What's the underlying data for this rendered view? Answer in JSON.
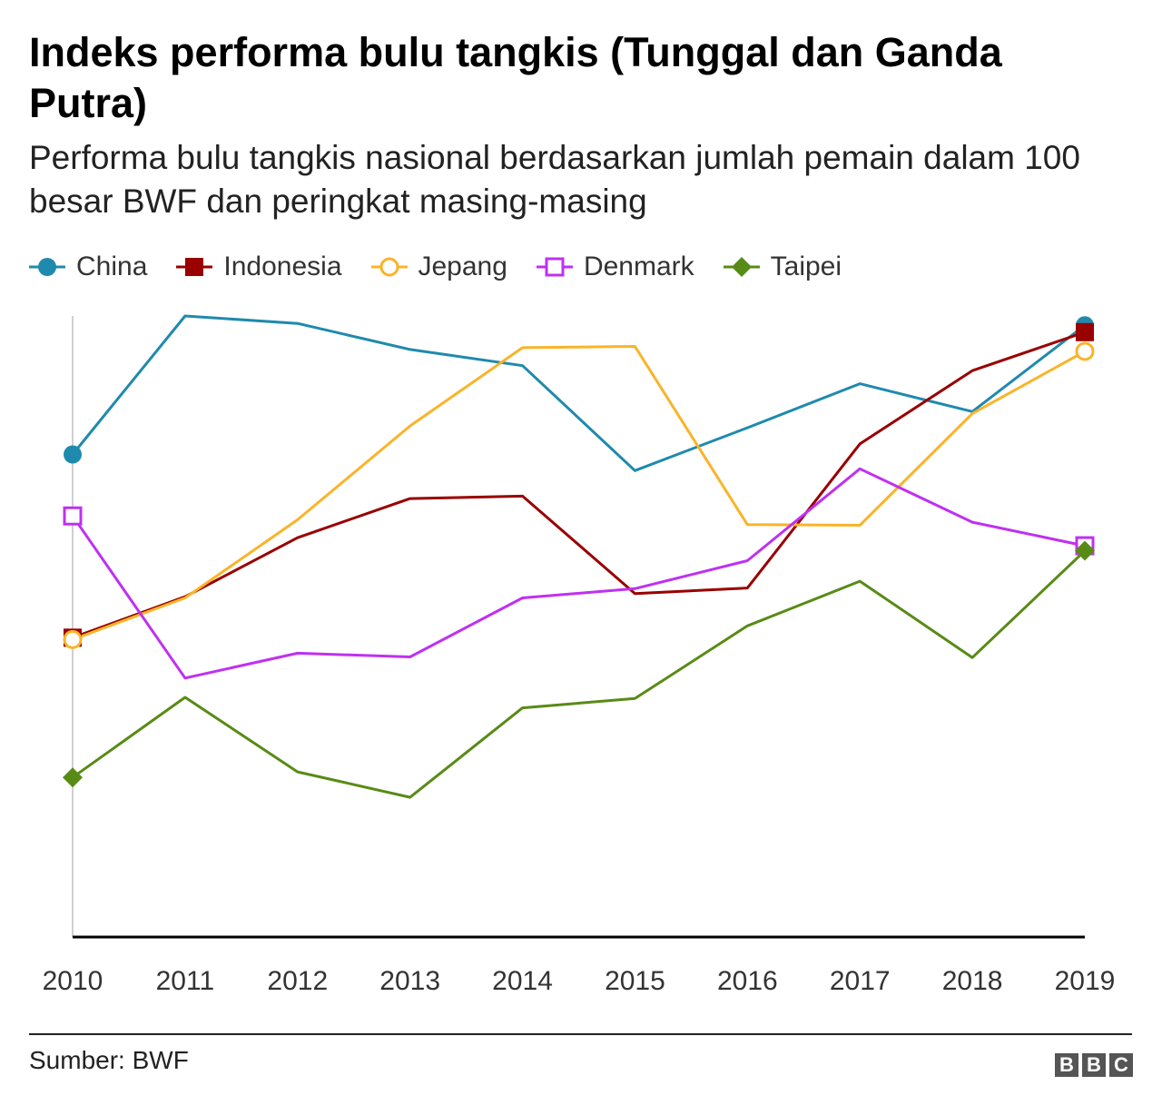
{
  "header": {
    "title": "Indeks performa bulu tangkis (Tunggal dan Ganda Putra)",
    "subtitle": "Performa bulu tangkis nasional berdasarkan jumlah pemain dalam 100 besar BWF dan peringkat masing-masing"
  },
  "footer": {
    "source": "Sumber: BWF",
    "logo": [
      "B",
      "B",
      "C"
    ]
  },
  "chart_data": {
    "type": "line",
    "title": "Indeks performa bulu tangkis (Tunggal dan Ganda Putra)",
    "subtitle": "Performa bulu tangkis nasional berdasarkan jumlah pemain dalam 100 besar BWF dan peringkat masing-masing",
    "xlabel": "",
    "ylabel": "",
    "x": [
      "2010",
      "2011",
      "2012",
      "2013",
      "2014",
      "2015",
      "2016",
      "2017",
      "2018",
      "2019"
    ],
    "ylim": [
      0,
      100
    ],
    "y_axis_labels_shown": false,
    "grid": false,
    "legend_position": "top-left",
    "series": [
      {
        "name": "China",
        "color": "#1f8aad",
        "marker": "filled-circle",
        "values": [
          77.7,
          100,
          98.8,
          94.6,
          92,
          75.1,
          82,
          89.1,
          84.6,
          98.5
        ]
      },
      {
        "name": "Indonesia",
        "color": "#990000",
        "marker": "filled-square",
        "values": [
          48.2,
          54.8,
          64.3,
          70.6,
          71,
          55.3,
          56.2,
          79.4,
          91.2,
          97.4
        ]
      },
      {
        "name": "Jepang",
        "color": "#fab429",
        "marker": "hollow-circle",
        "values": [
          47.9,
          54.6,
          67.2,
          82.3,
          94.9,
          95.1,
          66.4,
          66.3,
          84.3,
          94.3
        ]
      },
      {
        "name": "Denmark",
        "color": "#c030f0",
        "marker": "hollow-square",
        "values": [
          67.8,
          41.7,
          45.7,
          45.1,
          54.6,
          56.1,
          60.6,
          75.4,
          66.8,
          63
        ]
      },
      {
        "name": "Taipei",
        "color": "#588b16",
        "marker": "filled-diamond",
        "values": [
          25.7,
          38.6,
          26.6,
          22.5,
          36.9,
          38.4,
          50.1,
          57.3,
          45,
          62.2
        ]
      }
    ]
  }
}
